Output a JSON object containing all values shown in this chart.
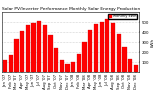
{
  "title": "Solar PV/Inverter Performance Monthly Solar Energy Production",
  "bar_color": "#ff0000",
  "edge_color": "#cc0000",
  "background_color": "#ffffff",
  "grid_color": "#aaaaaa",
  "text_color": "#000000",
  "categories": [
    "Jan '07",
    "Feb '07",
    "Mar '07",
    "Apr '07",
    "May '07",
    "Jun '07",
    "Jul '07",
    "Aug '07",
    "Sep '07",
    "Oct '07",
    "Nov '07",
    "Dec '07",
    "Jan '08",
    "Feb '08",
    "Mar '08",
    "Apr '08",
    "May '08",
    "Jun '08",
    "Jul '08",
    "Aug '08",
    "Sep '08",
    "Oct '08",
    "Nov '08",
    "Dec '08"
  ],
  "values": [
    120,
    175,
    330,
    415,
    475,
    490,
    515,
    470,
    370,
    245,
    125,
    85,
    105,
    185,
    305,
    425,
    485,
    505,
    535,
    490,
    385,
    255,
    135,
    75
  ],
  "ylim": [
    0,
    600
  ],
  "yticks": [
    100,
    200,
    300,
    400,
    500
  ],
  "ylabel": "kWh",
  "legend_label": "Monthly kWh",
  "title_fontsize": 3.2,
  "tick_fontsize": 2.8,
  "ylabel_fontsize": 3.0
}
